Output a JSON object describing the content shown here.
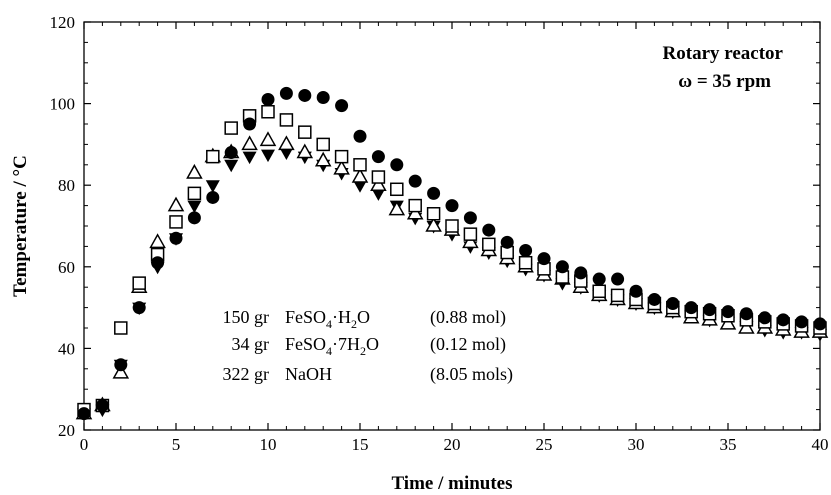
{
  "chart_data": {
    "type": "scatter",
    "xlabel": "Time / minutes",
    "ylabel": "Temperature / °C",
    "xlim": [
      0,
      40
    ],
    "ylim": [
      20,
      120
    ],
    "xticks": [
      0,
      5,
      10,
      15,
      20,
      25,
      30,
      35,
      40
    ],
    "yticks": [
      20,
      40,
      60,
      80,
      100,
      120
    ],
    "grid": false,
    "annotations": {
      "reactor_line1": "Rotary reactor",
      "reactor_line2": "ω = 35 rpm"
    },
    "composition": [
      {
        "amount": "150 gr",
        "compound": "FeSO",
        "sub1": "4",
        "mid": "·H",
        "sub2": "2",
        "tail": "O",
        "moles": "(0.88 mol)"
      },
      {
        "amount": "34 gr",
        "compound": "FeSO",
        "sub1": "4",
        "mid": "·7H",
        "sub2": "2",
        "tail": "O",
        "moles": "(0.12 mol)"
      },
      {
        "amount": "322 gr",
        "compound": "NaOH",
        "sub1": "",
        "mid": "",
        "sub2": "",
        "tail": "",
        "moles": "(8.05 mols)"
      }
    ],
    "series": [
      {
        "marker": "filled-circle",
        "x": [
          0,
          1,
          2,
          3,
          4,
          5,
          6,
          7,
          8,
          9,
          10,
          11,
          12,
          13,
          14,
          15,
          16,
          17,
          18,
          19,
          20,
          21,
          22,
          23,
          24,
          25,
          26,
          27,
          28,
          29,
          30,
          31,
          32,
          33,
          34,
          35,
          36,
          37,
          38,
          39,
          40
        ],
        "y": [
          24,
          26,
          36,
          50,
          61,
          67,
          72,
          77,
          88,
          95,
          101,
          102.5,
          102,
          101.5,
          99.5,
          92,
          87,
          85,
          81,
          78,
          75,
          72,
          69,
          66,
          64,
          62,
          60,
          58.5,
          57,
          57,
          54,
          52,
          51,
          50,
          49.5,
          49,
          48.5,
          47.5,
          47,
          46.5,
          46
        ]
      },
      {
        "marker": "open-square",
        "x": [
          0,
          1,
          2,
          3,
          4,
          5,
          6,
          7,
          8,
          9,
          10,
          11,
          12,
          13,
          14,
          15,
          16,
          17,
          18,
          19,
          20,
          21,
          22,
          23,
          24,
          25,
          26,
          27,
          28,
          29,
          30,
          31,
          32,
          33,
          34,
          35,
          36,
          37,
          38,
          39,
          40
        ],
        "y": [
          25,
          26,
          45,
          56,
          63,
          71,
          78,
          87,
          94,
          97,
          98,
          96,
          93,
          90,
          87,
          85,
          82,
          79,
          75,
          73,
          70,
          68,
          65.5,
          63.5,
          61,
          59.5,
          57.5,
          56.5,
          54,
          53,
          52,
          51,
          50,
          49,
          48.5,
          48,
          47,
          46.5,
          46,
          45.5,
          45
        ]
      },
      {
        "marker": "open-triangle-up",
        "x": [
          0,
          1,
          2,
          3,
          4,
          5,
          6,
          7,
          8,
          9,
          10,
          11,
          12,
          13,
          14,
          15,
          16,
          17,
          18,
          19,
          20,
          21,
          22,
          23,
          24,
          25,
          26,
          27,
          28,
          29,
          30,
          31,
          32,
          33,
          34,
          35,
          36,
          37,
          38,
          39,
          40
        ],
        "y": [
          24,
          26,
          34,
          55,
          66,
          75,
          83,
          87,
          88,
          90,
          91,
          90,
          88,
          86,
          84,
          82,
          80,
          74,
          73,
          70,
          69,
          66,
          64,
          62,
          60,
          58,
          57,
          55,
          53,
          52,
          51,
          50,
          49,
          47.5,
          47,
          46,
          45,
          45,
          44.5,
          44,
          44
        ]
      },
      {
        "marker": "filled-triangle-down",
        "x": [
          0,
          1,
          2,
          3,
          4,
          5,
          6,
          7,
          8,
          9,
          10,
          11,
          12,
          13,
          14,
          15,
          16,
          17,
          18,
          19,
          20,
          21,
          22,
          23,
          24,
          25,
          26,
          27,
          28,
          29,
          30,
          31,
          32,
          33,
          34,
          35,
          36,
          37,
          38,
          39,
          40
        ],
        "y": [
          24,
          25,
          36,
          50,
          60,
          67,
          75,
          80,
          85,
          87,
          87.5,
          88,
          87,
          85,
          83,
          80,
          78,
          75,
          72,
          70,
          68,
          65,
          63.5,
          61.5,
          59.5,
          58,
          56,
          55,
          53,
          52,
          51,
          50,
          49,
          48,
          47,
          46.5,
          45.5,
          44.5,
          44,
          44,
          43.5
        ]
      }
    ]
  }
}
